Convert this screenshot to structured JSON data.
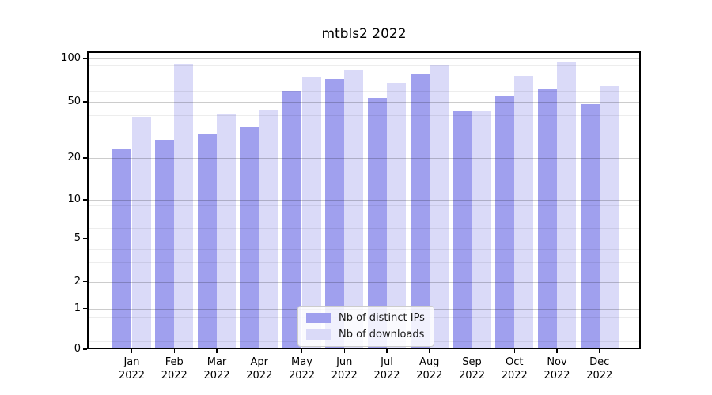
{
  "title": "mtbls2 2022",
  "chart_data": {
    "type": "bar",
    "title": "mtbls2 2022",
    "categories": [
      "Jan 2022",
      "Feb 2022",
      "Mar 2022",
      "Apr 2022",
      "May 2022",
      "Jun 2022",
      "Jul 2022",
      "Aug 2022",
      "Sep 2022",
      "Oct 2022",
      "Nov 2022",
      "Dec 2022"
    ],
    "x_tick_line1": [
      "Jan",
      "Feb",
      "Mar",
      "Apr",
      "May",
      "Jun",
      "Jul",
      "Aug",
      "Sep",
      "Oct",
      "Nov",
      "Dec"
    ],
    "x_tick_line2": [
      "2022",
      "2022",
      "2022",
      "2022",
      "2022",
      "2022",
      "2022",
      "2022",
      "2022",
      "2022",
      "2022",
      "2022"
    ],
    "series": [
      {
        "name": "Nb of distinct IPs",
        "color": "#a0a0ee",
        "values": [
          23,
          27,
          30,
          33,
          60,
          72,
          53,
          78,
          43,
          55,
          61,
          48
        ]
      },
      {
        "name": "Nb of downloads",
        "color": "#dadaf8",
        "values": [
          39,
          92,
          41,
          44,
          75,
          83,
          68,
          90,
          43,
          76,
          95,
          64
        ]
      }
    ],
    "xlabel": "",
    "ylabel": "",
    "yscale": "symlog",
    "ylim": [
      0,
      112
    ],
    "y_major_ticks": [
      100,
      50,
      20,
      10,
      5,
      2,
      1,
      0
    ],
    "y_major_tick_labels": [
      "100",
      "50",
      "20",
      "10",
      "5",
      "2",
      "1",
      "0"
    ],
    "y_minor_ticks": [
      0.2,
      0.4,
      0.6,
      0.8,
      3,
      4,
      6,
      7,
      8,
      9,
      30,
      40,
      60,
      70,
      80,
      90
    ],
    "grid": "on",
    "legend_position": "lower center, inside plot"
  },
  "legend": {
    "items": [
      {
        "label": "Nb of distinct IPs",
        "color": "#a0a0ee"
      },
      {
        "label": "Nb of downloads",
        "color": "#dadaf8"
      }
    ]
  }
}
